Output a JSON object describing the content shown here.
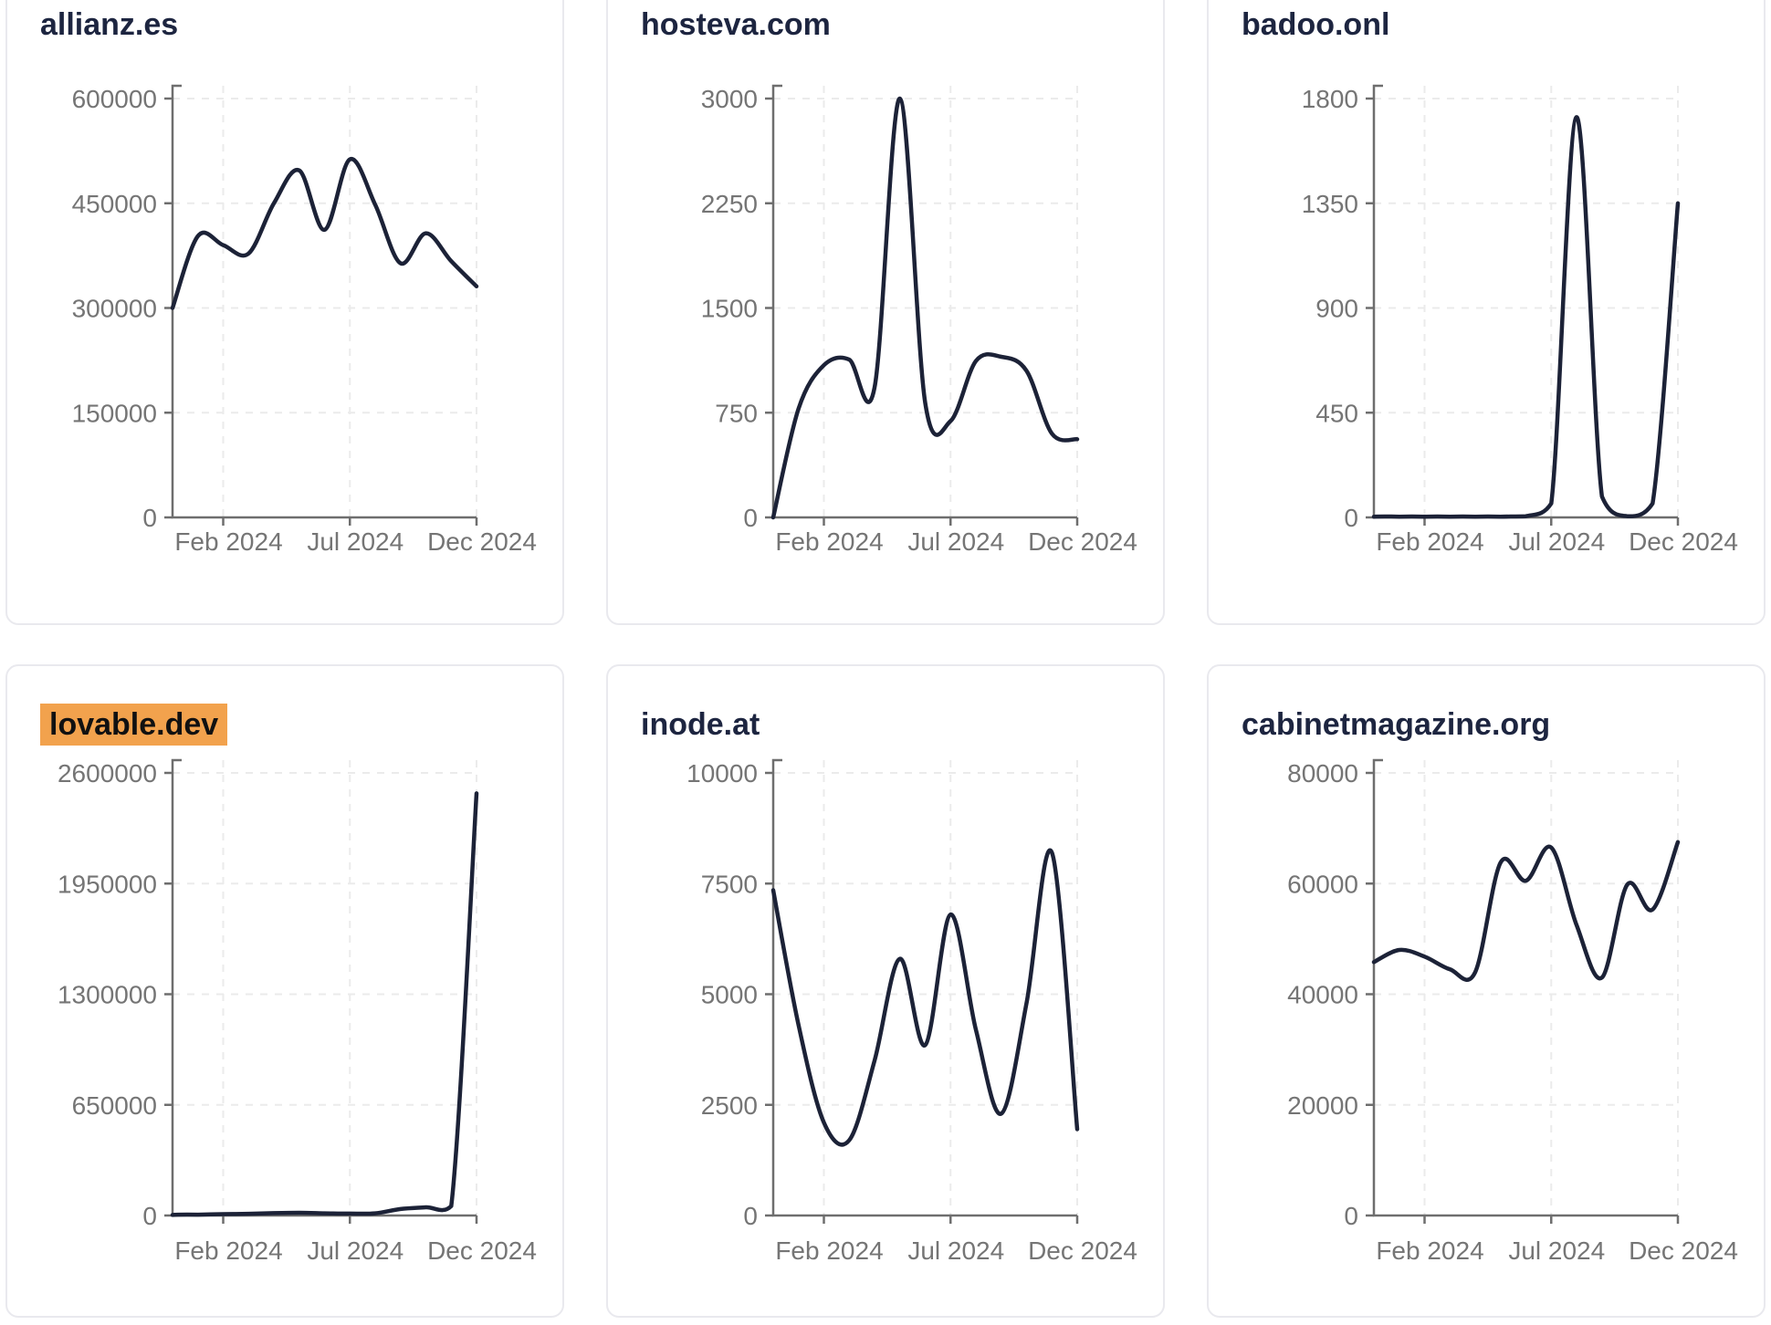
{
  "page": {
    "background": "#ffffff",
    "description": "Small-multiples dashboard of monthly traffic line charts for six domains"
  },
  "styles": {
    "line_color": "#1c2237",
    "title_color": "#1d2540",
    "axis_color": "#6e6e6e",
    "tick_label_color": "#757575",
    "grid_color": "#ebebeb",
    "card_border_color": "#e9e9ee",
    "card_background": "#ffffff",
    "highlight_color": "#f2a24d",
    "highlight_text_color": "#111111"
  },
  "x_axis": {
    "tick_labels": [
      "Feb 2024",
      "Jul 2024",
      "Dec 2024"
    ],
    "tick_month_indices": [
      2,
      7,
      12
    ]
  },
  "chart_data": [
    {
      "type": "line",
      "title": "allianz.es",
      "highlighted": false,
      "x": [
        "2023-12",
        "2024-01",
        "2024-02",
        "2024-03",
        "2024-04",
        "2024-05",
        "2024-06",
        "2024-07",
        "2024-08",
        "2024-09",
        "2024-10",
        "2024-11",
        "2024-12"
      ],
      "values": [
        300000,
        403000,
        390000,
        378000,
        450000,
        497000,
        412000,
        513000,
        448000,
        364000,
        407000,
        367000,
        331000
      ],
      "ylim": [
        0,
        600000
      ],
      "ytick_labels": [
        "600000",
        "450000",
        "300000",
        "150000",
        "0"
      ],
      "xtick_labels": [
        "Feb 2024",
        "Jul 2024",
        "Dec 2024"
      ],
      "grid": "dashed",
      "legend": "none"
    },
    {
      "type": "line",
      "title": "hosteva.com",
      "highlighted": false,
      "x": [
        "2023-12",
        "2024-01",
        "2024-02",
        "2024-03",
        "2024-04",
        "2024-05",
        "2024-06",
        "2024-07",
        "2024-08",
        "2024-09",
        "2024-10",
        "2024-11",
        "2024-12"
      ],
      "values": [
        0,
        780,
        1090,
        1130,
        930,
        3000,
        820,
        690,
        1120,
        1150,
        1050,
        600,
        560
      ],
      "ylim": [
        0,
        3000
      ],
      "ytick_labels": [
        "3000",
        "2250",
        "1500",
        "750",
        "0"
      ],
      "xtick_labels": [
        "Feb 2024",
        "Jul 2024",
        "Dec 2024"
      ],
      "grid": "dashed",
      "legend": "none"
    },
    {
      "type": "line",
      "title": "badoo.onl",
      "highlighted": false,
      "x": [
        "2023-12",
        "2024-01",
        "2024-02",
        "2024-03",
        "2024-04",
        "2024-05",
        "2024-06",
        "2024-07",
        "2024-08",
        "2024-09",
        "2024-10",
        "2024-11",
        "2024-12"
      ],
      "values": [
        3,
        3,
        3,
        3,
        3,
        3,
        5,
        60,
        1720,
        90,
        5,
        60,
        1350
      ],
      "ylim": [
        0,
        1800
      ],
      "ytick_labels": [
        "1800",
        "1350",
        "900",
        "450",
        "0"
      ],
      "xtick_labels": [
        "Feb 2024",
        "Jul 2024",
        "Dec 2024"
      ],
      "grid": "dashed",
      "legend": "none"
    },
    {
      "type": "line",
      "title": "lovable.dev",
      "highlighted": true,
      "x": [
        "2023-12",
        "2024-01",
        "2024-02",
        "2024-03",
        "2024-04",
        "2024-05",
        "2024-06",
        "2024-07",
        "2024-08",
        "2024-09",
        "2024-10",
        "2024-11",
        "2024-12"
      ],
      "values": [
        3000,
        5000,
        8000,
        10000,
        14000,
        16000,
        13000,
        11000,
        13000,
        38000,
        48000,
        55000,
        2480000
      ],
      "ylim": [
        0,
        2600000
      ],
      "ytick_labels": [
        "2600000",
        "1950000",
        "1300000",
        "650000",
        "0"
      ],
      "xtick_labels": [
        "Feb 2024",
        "Jul 2024",
        "Dec 2024"
      ],
      "grid": "dashed",
      "legend": "none"
    },
    {
      "type": "line",
      "title": "inode.at",
      "highlighted": false,
      "x": [
        "2023-12",
        "2024-01",
        "2024-02",
        "2024-03",
        "2024-04",
        "2024-05",
        "2024-06",
        "2024-07",
        "2024-08",
        "2024-09",
        "2024-10",
        "2024-11",
        "2024-12"
      ],
      "values": [
        7350,
        4300,
        2100,
        1700,
        3500,
        5800,
        3850,
        6800,
        4200,
        2300,
        4800,
        8200,
        1950
      ],
      "ylim": [
        0,
        10000
      ],
      "ytick_labels": [
        "10000",
        "7500",
        "5000",
        "2500",
        "0"
      ],
      "xtick_labels": [
        "Feb 2024",
        "Jul 2024",
        "Dec 2024"
      ],
      "grid": "dashed",
      "legend": "none"
    },
    {
      "type": "line",
      "title": "cabinetmagazine.org",
      "highlighted": false,
      "x": [
        "2023-12",
        "2024-01",
        "2024-02",
        "2024-03",
        "2024-04",
        "2024-05",
        "2024-06",
        "2024-07",
        "2024-08",
        "2024-09",
        "2024-10",
        "2024-11",
        "2024-12"
      ],
      "values": [
        45800,
        48000,
        46800,
        44500,
        44000,
        63800,
        60500,
        66500,
        52500,
        43000,
        59800,
        55300,
        67500
      ],
      "ylim": [
        0,
        80000
      ],
      "ytick_labels": [
        "80000",
        "60000",
        "40000",
        "20000",
        "0"
      ],
      "xtick_labels": [
        "Feb 2024",
        "Jul 2024",
        "Dec 2024"
      ],
      "grid": "dashed",
      "legend": "none"
    }
  ]
}
